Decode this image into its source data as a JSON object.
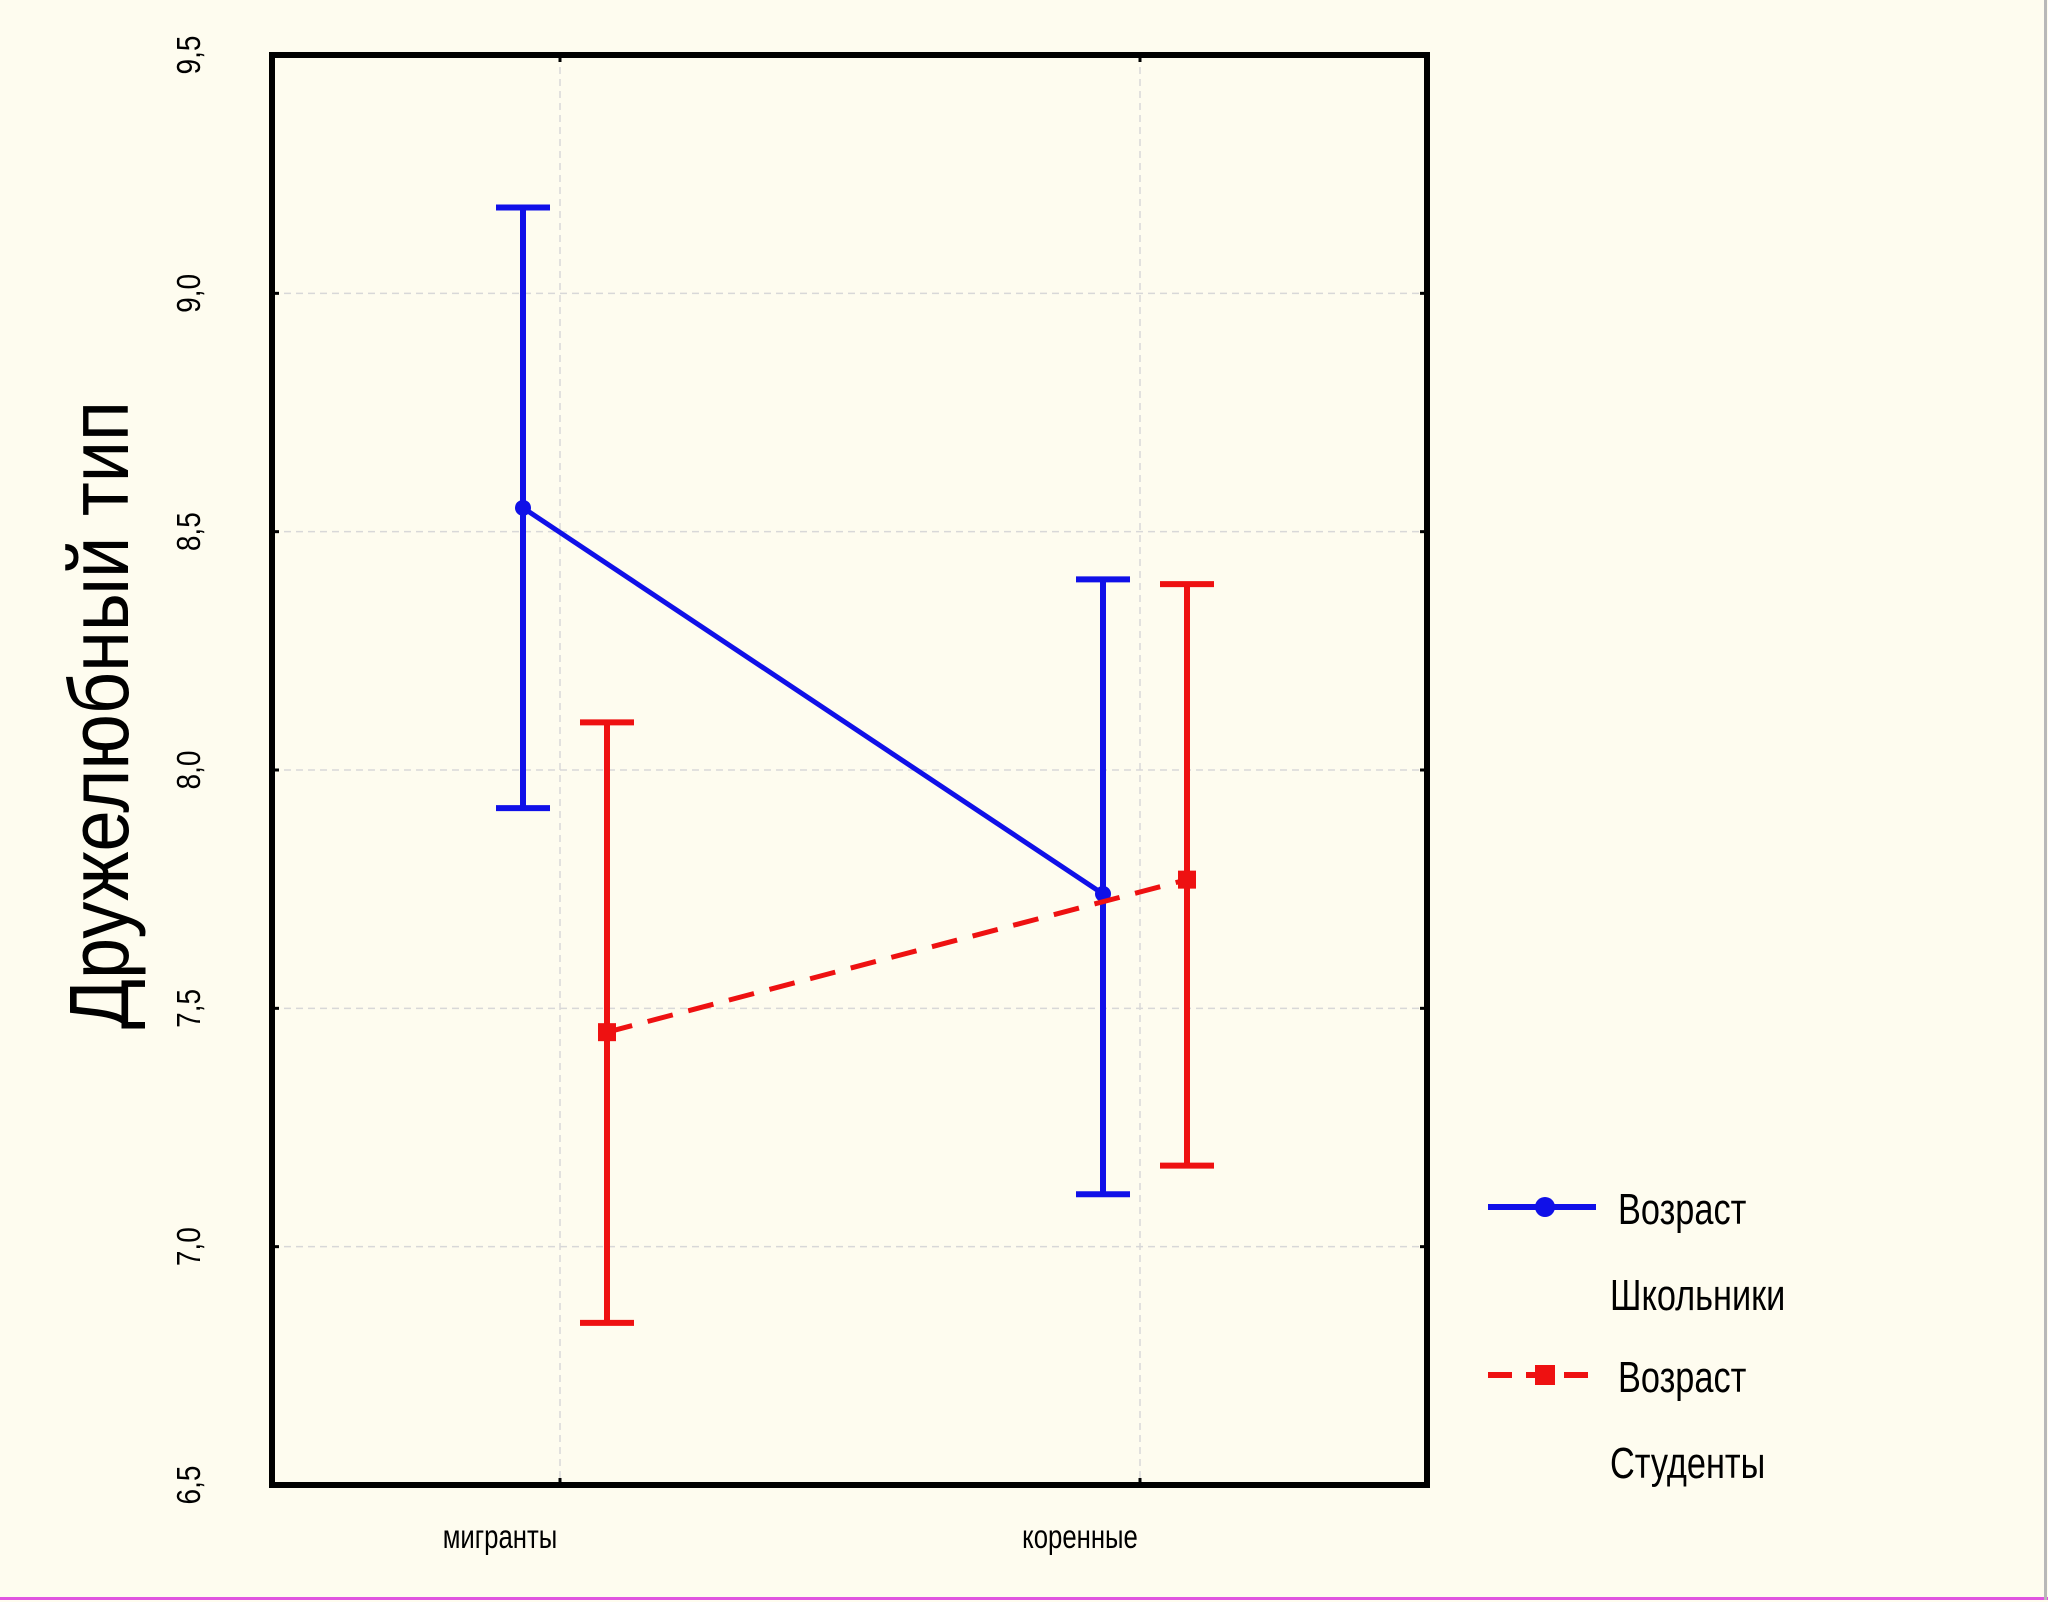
{
  "chart_data": {
    "type": "line",
    "title": "",
    "xlabel": "",
    "ylabel": "Дружелюбный тип",
    "categories": [
      "мигранты",
      "коренные"
    ],
    "ylim": [
      6.5,
      9.5
    ],
    "yticks": [
      "6,5",
      "7,0",
      "7,5",
      "8,0",
      "8,5",
      "9,0",
      "9,5"
    ],
    "ytick_values": [
      6.5,
      7.0,
      7.5,
      8.0,
      8.5,
      9.0,
      9.5
    ],
    "grid": true,
    "legend_position": "bottom-right",
    "series": [
      {
        "name": "Возраст Школьники",
        "legend_lines": [
          "Возраст",
          "Школьники"
        ],
        "color": "#1010e8",
        "line_style": "solid",
        "marker": "circle",
        "values": [
          8.55,
          7.74
        ],
        "error_low": [
          7.92,
          7.11
        ],
        "error_high": [
          9.18,
          8.4
        ]
      },
      {
        "name": "Возраст Студенты",
        "legend_lines": [
          "Возраст",
          "Студенты"
        ],
        "color": "#ee1111",
        "line_style": "dashed",
        "marker": "square",
        "values": [
          7.45,
          7.77
        ],
        "error_low": [
          6.84,
          7.17
        ],
        "error_high": [
          8.1,
          8.39
        ]
      }
    ]
  }
}
